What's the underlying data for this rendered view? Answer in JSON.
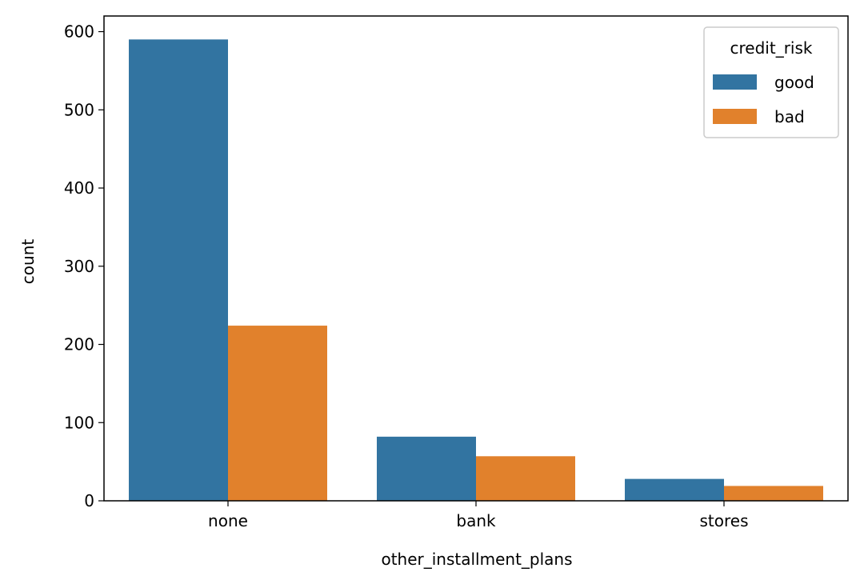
{
  "chart_data": {
    "type": "bar",
    "categories": [
      "none",
      "bank",
      "stores"
    ],
    "series": [
      {
        "name": "good",
        "values": [
          590,
          82,
          28
        ],
        "color": "#3274a1"
      },
      {
        "name": "bad",
        "values": [
          224,
          57,
          19
        ],
        "color": "#e1812c"
      }
    ],
    "xlabel": "other_installment_plans",
    "ylabel": "count",
    "ylim": [
      0,
      620
    ],
    "yticks": [
      0,
      100,
      200,
      300,
      400,
      500,
      600
    ],
    "grid": false,
    "legend": {
      "title": "credit_risk",
      "placement": "top-right"
    }
  }
}
